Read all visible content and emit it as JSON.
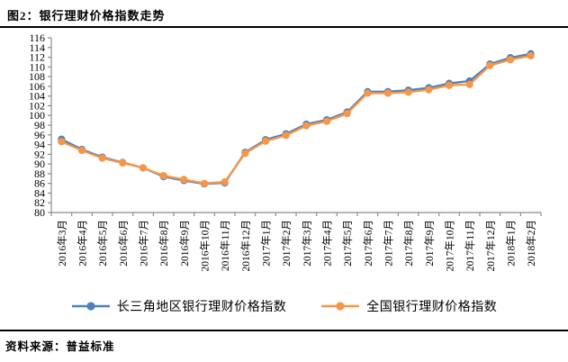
{
  "header": {
    "title": "图2：银行理财价格指数走势"
  },
  "footer": {
    "source": "资料来源：普益标准"
  },
  "colors": {
    "series_yangtze": "#4F81BD",
    "series_national": "#F79646",
    "axis": "#8C8C8C",
    "text": "#000000",
    "background": "#FFFFFF"
  },
  "chart_data": {
    "type": "line",
    "title": "银行理财价格指数走势",
    "xlabel": "",
    "ylabel": "",
    "ylim": [
      80,
      116
    ],
    "ytick_step": 2,
    "grid": false,
    "legend_position": "bottom",
    "marker": "circle",
    "categories": [
      "2016年3月",
      "2016年4月",
      "2016年5月",
      "2016年6月",
      "2016年7月",
      "2016年8月",
      "2016年9月",
      "2016年10月",
      "2016年11月",
      "2016年12月",
      "2017年1月",
      "2017年2月",
      "2017年3月",
      "2017年4月",
      "2017年5月",
      "2017年6月",
      "2017年7月",
      "2017年8月",
      "2017年9月",
      "2017年10月",
      "2017年11月",
      "2017年12月",
      "2018年1月",
      "2018年2月"
    ],
    "series": [
      {
        "name": "长三角地区银行理财价格指数",
        "color": "#4F81BD",
        "values": [
          95.1,
          93.0,
          91.4,
          90.3,
          89.2,
          87.4,
          86.6,
          85.9,
          86.1,
          92.4,
          95.0,
          96.2,
          98.2,
          99.1,
          100.7,
          104.9,
          104.9,
          105.2,
          105.7,
          106.6,
          107.1,
          110.6,
          111.9,
          112.7
        ]
      },
      {
        "name": "全国银行理财价格指数",
        "color": "#F79646",
        "values": [
          94.6,
          92.8,
          91.2,
          90.2,
          89.2,
          87.6,
          86.8,
          86.0,
          86.3,
          92.2,
          94.7,
          95.9,
          97.9,
          98.8,
          100.4,
          104.6,
          104.6,
          104.8,
          105.3,
          106.2,
          106.4,
          110.3,
          111.5,
          112.3
        ]
      }
    ]
  }
}
